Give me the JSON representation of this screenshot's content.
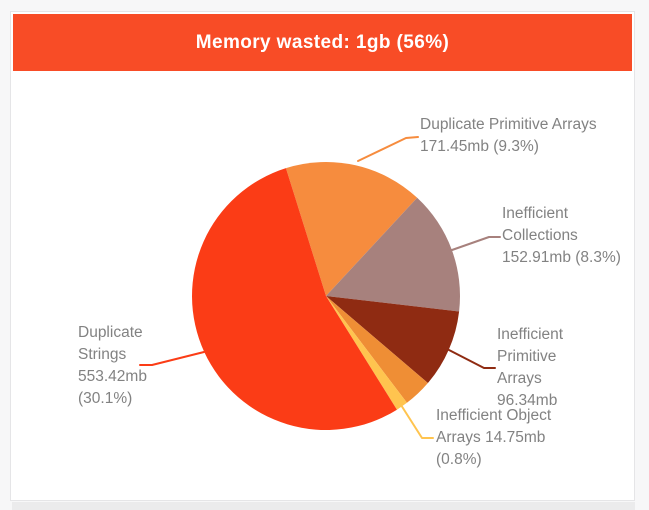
{
  "page": {
    "background": "#f7f7f8"
  },
  "header": {
    "title": "Memory wasted: 1gb (56%)",
    "background": "#f84c26",
    "text_color": "#ffffff"
  },
  "chart_data": {
    "type": "pie",
    "title": "Memory wasted: 1gb (56%)",
    "total_wasted": "1gb",
    "total_percent_of_heap": "56%",
    "unit": "mb",
    "start_angle_deg": 342.6,
    "label_color": "#828282",
    "slices": [
      {
        "slug": "duplicate-primitive-arrays",
        "name": "Duplicate Primitive Arrays",
        "value_mb": 171.45,
        "percent_of_heap": "9.3%",
        "color": "#f68c3e",
        "label_lines": [
          "Duplicate Primitive Arrays",
          "171.45mb (9.3%)"
        ]
      },
      {
        "slug": "inefficient-collections",
        "name": "Inefficient Collections",
        "value_mb": 152.91,
        "percent_of_heap": "8.3%",
        "color": "#a7817d",
        "label_lines": [
          "Inefficient",
          "Collections",
          "152.91mb (8.3%)"
        ]
      },
      {
        "slug": "inefficient-primitive-arrays",
        "name": "Inefficient Primitive Arrays",
        "value_mb": 96.34,
        "percent_of_heap": "",
        "color": "#8f2b12",
        "label_lines": [
          "Inefficient",
          "Primitive",
          "Arrays",
          "96.34mb"
        ]
      },
      {
        "slug": "unlabeled",
        "name": "",
        "value_mb": 35.13,
        "percent_of_heap": "",
        "color": "#ef8e35",
        "label_lines": []
      },
      {
        "slug": "inefficient-object-arrays",
        "name": "Inefficient Object Arrays",
        "value_mb": 14.75,
        "percent_of_heap": "0.8%",
        "color": "#ffc44f",
        "label_lines": [
          "Inefficient Object",
          "Arrays 14.75mb",
          "(0.8%)"
        ]
      },
      {
        "slug": "duplicate-strings",
        "name": "Duplicate Strings",
        "value_mb": 553.42,
        "percent_of_heap": "30.1%",
        "color": "#fb3c16",
        "label_lines": [
          "Duplicate",
          "Strings",
          "553.42mb",
          "(30.1%)"
        ]
      }
    ]
  }
}
